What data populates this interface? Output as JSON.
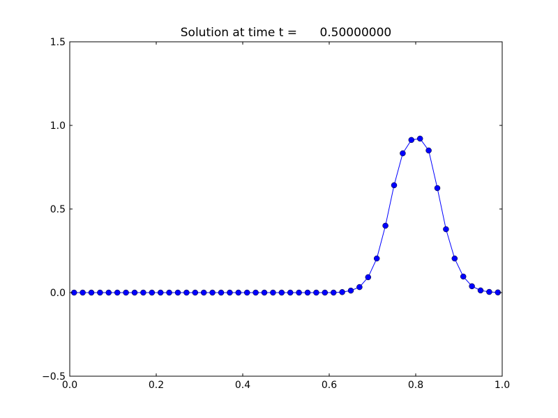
{
  "chart_data": {
    "type": "line",
    "title": "Solution at time t =      0.50000000",
    "x": [
      0.01,
      0.03,
      0.05,
      0.07,
      0.09,
      0.11,
      0.13,
      0.15,
      0.17,
      0.19,
      0.21,
      0.23,
      0.25,
      0.27,
      0.29,
      0.31,
      0.33,
      0.35,
      0.37,
      0.39,
      0.41,
      0.43,
      0.45,
      0.47,
      0.49,
      0.51,
      0.53,
      0.55,
      0.57,
      0.59,
      0.61,
      0.63,
      0.65,
      0.67,
      0.69,
      0.71,
      0.73,
      0.75,
      0.77,
      0.79,
      0.81,
      0.83,
      0.85,
      0.87,
      0.89,
      0.91,
      0.93,
      0.95,
      0.97,
      0.99
    ],
    "values": [
      0,
      0,
      0,
      0,
      0,
      0,
      0,
      0,
      0,
      0,
      0,
      0,
      0,
      0,
      0,
      0,
      0,
      0,
      0,
      0,
      0,
      0,
      0,
      0,
      0,
      0,
      0,
      0,
      0,
      0,
      0,
      0.003,
      0.012,
      0.033,
      0.092,
      0.204,
      0.4,
      0.642,
      0.833,
      0.913,
      0.921,
      0.85,
      0.625,
      0.379,
      0.204,
      0.096,
      0.038,
      0.013,
      0.004,
      0.001
    ],
    "color": "#0000ff",
    "xlim": [
      0,
      1
    ],
    "ylim": [
      -0.5,
      1.5
    ],
    "xticks": [
      {
        "value": 0,
        "label": "0.0"
      },
      {
        "value": 0.2,
        "label": "0.2"
      },
      {
        "value": 0.4,
        "label": "0.4"
      },
      {
        "value": 0.6,
        "label": "0.6"
      },
      {
        "value": 0.8,
        "label": "0.8"
      },
      {
        "value": 1,
        "label": "1.0"
      }
    ],
    "yticks": [
      {
        "value": -0.5,
        "label": "−0.5"
      },
      {
        "value": 0,
        "label": "0.0"
      },
      {
        "value": 0.5,
        "label": "0.5"
      },
      {
        "value": 1,
        "label": "1.0"
      },
      {
        "value": 1.5,
        "label": "1.5"
      }
    ],
    "grid": false
  }
}
